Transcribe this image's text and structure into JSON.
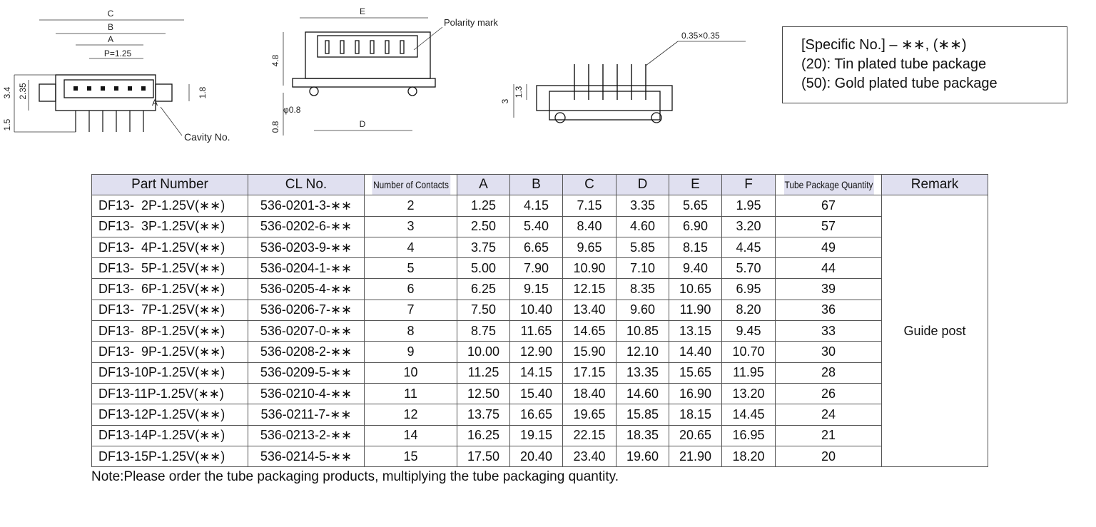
{
  "drawings": {
    "front": {
      "labels": [
        "C",
        "B",
        "A",
        "P=1.25",
        "3.4",
        "2.35",
        "1.5",
        "1.8",
        "A",
        "Cavity No."
      ]
    },
    "top": {
      "labels": [
        "E",
        "Polarity mark",
        "4.8",
        "φ0.8",
        "0.8",
        "D"
      ]
    },
    "side": {
      "labels": [
        "0.35×0.35",
        "3",
        "1.3"
      ]
    }
  },
  "specific_note": [
    "[Specific No.] – ∗∗, (∗∗)",
    "(20): Tin plated tube package",
    "(50): Gold plated tube package"
  ],
  "table": {
    "header": [
      "Part Number",
      "CL No.",
      "Number of Contacts",
      "A",
      "B",
      "C",
      "D",
      "E",
      "F",
      "Tube Package Quantity",
      "Remark"
    ],
    "rows": [
      [
        "DF13-  2P-1.25V(∗∗)",
        "536-0201-3-∗∗",
        "2",
        "1.25",
        "4.15",
        "7.15",
        "3.35",
        "5.65",
        "1.95",
        "67"
      ],
      [
        "DF13-  3P-1.25V(∗∗)",
        "536-0202-6-∗∗",
        "3",
        "2.50",
        "5.40",
        "8.40",
        "4.60",
        "6.90",
        "3.20",
        "57"
      ],
      [
        "DF13-  4P-1.25V(∗∗)",
        "536-0203-9-∗∗",
        "4",
        "3.75",
        "6.65",
        "9.65",
        "5.85",
        "8.15",
        "4.45",
        "49"
      ],
      [
        "DF13-  5P-1.25V(∗∗)",
        "536-0204-1-∗∗",
        "5",
        "5.00",
        "7.90",
        "10.90",
        "7.10",
        "9.40",
        "5.70",
        "44"
      ],
      [
        "DF13-  6P-1.25V(∗∗)",
        "536-0205-4-∗∗",
        "6",
        "6.25",
        "9.15",
        "12.15",
        "8.35",
        "10.65",
        "6.95",
        "39"
      ],
      [
        "DF13-  7P-1.25V(∗∗)",
        "536-0206-7-∗∗",
        "7",
        "7.50",
        "10.40",
        "13.40",
        "9.60",
        "11.90",
        "8.20",
        "36"
      ],
      [
        "DF13-  8P-1.25V(∗∗)",
        "536-0207-0-∗∗",
        "8",
        "8.75",
        "11.65",
        "14.65",
        "10.85",
        "13.15",
        "9.45",
        "33"
      ],
      [
        "DF13-  9P-1.25V(∗∗)",
        "536-0208-2-∗∗",
        "9",
        "10.00",
        "12.90",
        "15.90",
        "12.10",
        "14.40",
        "10.70",
        "30"
      ],
      [
        "DF13-10P-1.25V(∗∗)",
        "536-0209-5-∗∗",
        "10",
        "11.25",
        "14.15",
        "17.15",
        "13.35",
        "15.65",
        "11.95",
        "28"
      ],
      [
        "DF13-11P-1.25V(∗∗)",
        "536-0210-4-∗∗",
        "11",
        "12.50",
        "15.40",
        "18.40",
        "14.60",
        "16.90",
        "13.20",
        "26"
      ],
      [
        "DF13-12P-1.25V(∗∗)",
        "536-0211-7-∗∗",
        "12",
        "13.75",
        "16.65",
        "19.65",
        "15.85",
        "18.15",
        "14.45",
        "24"
      ],
      [
        "DF13-14P-1.25V(∗∗)",
        "536-0213-2-∗∗",
        "14",
        "16.25",
        "19.15",
        "22.15",
        "18.35",
        "20.65",
        "16.95",
        "21"
      ],
      [
        "DF13-15P-1.25V(∗∗)",
        "536-0214-5-∗∗",
        "15",
        "17.50",
        "20.40",
        "23.40",
        "19.60",
        "21.90",
        "18.20",
        "20"
      ]
    ],
    "remark": "Guide post"
  },
  "note": "Note:Please order the tube packaging products, multiplying the tube packaging quantity."
}
